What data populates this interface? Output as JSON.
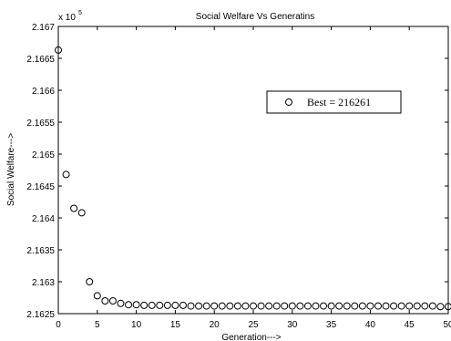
{
  "chart_data": {
    "type": "scatter",
    "title": "Social Welfare Vs Generatins",
    "xlabel": "Generation--->",
    "ylabel": "Social Welfare--->",
    "exponent_label": "x 10",
    "exponent_power": "5",
    "xlim": [
      0,
      50
    ],
    "ylim": [
      2.1625,
      2.167
    ],
    "x_ticks": [
      "0",
      "5",
      "10",
      "15",
      "20",
      "25",
      "30",
      "35",
      "40",
      "45",
      "50"
    ],
    "y_ticks": [
      "2.1625",
      "2.163",
      "2.1635",
      "2.164",
      "2.1645",
      "2.165",
      "2.1655",
      "2.166",
      "2.1665",
      "2.167"
    ],
    "legend": {
      "label": "Best = 216261",
      "position": "upper-right",
      "marker": "circle"
    },
    "marker_color": "#000000",
    "series": [
      {
        "x": [
          0,
          1,
          2,
          3,
          4,
          5,
          6,
          7,
          8,
          9,
          10,
          11,
          12,
          13,
          14,
          15,
          16,
          17,
          18,
          19,
          20,
          21,
          22,
          23,
          24,
          25,
          26,
          27,
          28,
          29,
          30,
          31,
          32,
          33,
          34,
          35,
          36,
          37,
          38,
          39,
          40,
          41,
          42,
          43,
          44,
          45,
          46,
          47,
          48,
          49,
          50
        ],
        "y": [
          2.16663,
          2.16468,
          2.16415,
          2.16408,
          2.163,
          2.16278,
          2.1627,
          2.1627,
          2.16266,
          2.16264,
          2.16264,
          2.16263,
          2.16263,
          2.16263,
          2.16263,
          2.16263,
          2.16263,
          2.16262,
          2.16262,
          2.16262,
          2.16262,
          2.16262,
          2.16262,
          2.16262,
          2.16262,
          2.16262,
          2.16262,
          2.16262,
          2.16262,
          2.16262,
          2.16262,
          2.16262,
          2.16262,
          2.16262,
          2.16262,
          2.16262,
          2.16262,
          2.16262,
          2.16262,
          2.16262,
          2.16262,
          2.16262,
          2.16262,
          2.16262,
          2.16262,
          2.16262,
          2.16262,
          2.16262,
          2.16262,
          2.16261,
          2.16261
        ]
      }
    ]
  }
}
